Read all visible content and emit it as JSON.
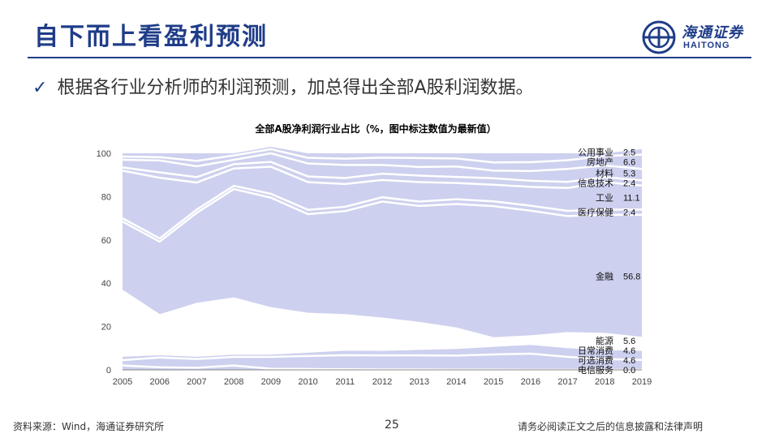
{
  "slide": {
    "title": "自下而上看盈利预测",
    "bullet": "根据各行业分析师的利润预测，加总得出全部A股利润数据。",
    "logo_cn": "海通证券",
    "logo_en": "HAITONG",
    "source": "资料来源：Wind，海通证券研究所",
    "page_number": "25",
    "disclaimer": "请务必阅读正文之后的信息披露和法律声明",
    "accent_color": "#1f3c88"
  },
  "chart_data": {
    "type": "area",
    "title": "全部A股净利润行业占比（%，图中标注数值为最新值）",
    "xlabel": "",
    "ylabel": "",
    "ylim": [
      0,
      100
    ],
    "yticks": [
      "0",
      "20",
      "40",
      "60",
      "80",
      "100"
    ],
    "x": [
      "2005",
      "2006",
      "2007",
      "2008",
      "2009",
      "2010",
      "2011",
      "2012",
      "2013",
      "2014",
      "2015",
      "2016",
      "2017",
      "2018",
      "2019"
    ],
    "fill_color": "#cdd0ee",
    "separator_color": "#ffffff",
    "series": [
      {
        "name": "电信服务",
        "values": [
          2.0,
          1.2,
          1.0,
          2.0,
          0.5,
          0.4,
          0.3,
          0.2,
          0.2,
          0.1,
          0.1,
          0.0,
          0.0,
          0.0,
          0.0
        ],
        "label": "0.0"
      },
      {
        "name": "可选消费",
        "values": [
          2.5,
          4.5,
          4.0,
          4.0,
          5.5,
          6.0,
          6.5,
          6.5,
          6.5,
          6.5,
          7.0,
          7.5,
          6.0,
          5.0,
          4.6
        ],
        "label": "4.6"
      },
      {
        "name": "日常消费",
        "values": [
          2.0,
          1.5,
          1.5,
          1.5,
          1.5,
          2.0,
          2.5,
          2.5,
          3.0,
          3.5,
          4.0,
          4.5,
          4.5,
          4.6,
          4.6
        ],
        "label": "4.6"
      },
      {
        "name": "能源",
        "values": [
          30.0,
          18.0,
          24.0,
          25.5,
          21.0,
          17.5,
          16.0,
          14.5,
          12.0,
          9.0,
          3.5,
          3.5,
          6.5,
          7.0,
          5.6
        ],
        "label": "5.6"
      },
      {
        "name": "金融",
        "values": [
          32.0,
          34.0,
          42.0,
          50.5,
          51.0,
          46.0,
          48.0,
          54.0,
          54.0,
          57.5,
          61.0,
          58.0,
          54.0,
          55.0,
          56.8
        ],
        "label": "56.8"
      },
      {
        "name": "医疗保健",
        "values": [
          1.5,
          1.5,
          1.5,
          1.5,
          1.8,
          2.0,
          2.0,
          2.0,
          2.0,
          2.2,
          2.2,
          2.3,
          2.4,
          2.4,
          2.4
        ],
        "label": "2.4"
      },
      {
        "name": "工业",
        "values": [
          22.0,
          28.0,
          12.5,
          8.0,
          12.5,
          12.8,
          10.5,
          8.0,
          9.0,
          7.5,
          7.7,
          8.7,
          10.6,
          12.7,
          11.1
        ],
        "label": "11.1"
      },
      {
        "name": "信息技术",
        "values": [
          1.5,
          2.5,
          2.5,
          2.0,
          2.2,
          2.6,
          2.8,
          2.9,
          3.0,
          2.8,
          3.0,
          2.8,
          2.8,
          2.3,
          2.4
        ],
        "label": "2.4"
      },
      {
        "name": "材料",
        "values": [
          3.5,
          5.5,
          5.0,
          2.0,
          4.0,
          6.0,
          6.0,
          4.0,
          4.0,
          4.8,
          3.5,
          4.5,
          6.0,
          5.4,
          5.3
        ],
        "label": "5.3"
      },
      {
        "name": "房地产",
        "values": [
          1.5,
          1.5,
          2.5,
          2.0,
          1.9,
          2.6,
          2.9,
          3.4,
          4.1,
          3.7,
          3.8,
          4.1,
          4.0,
          4.4,
          6.6
        ],
        "label": "6.6"
      },
      {
        "name": "公用事业",
        "values": [
          1.5,
          1.8,
          3.5,
          1.0,
          1.1,
          2.1,
          2.5,
          2.0,
          2.2,
          2.4,
          4.2,
          4.1,
          3.2,
          1.2,
          2.5
        ],
        "label": "2.5"
      }
    ]
  }
}
